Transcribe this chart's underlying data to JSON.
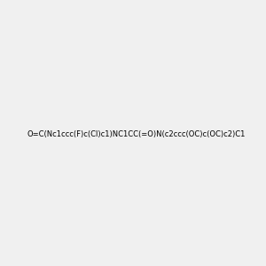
{
  "smiles": "O=C(Nc1ccc(F)c(Cl)c1)NC1CC(=O)N(c2ccc(OC)c(OC)c2)C1",
  "img_size": [
    300,
    300
  ],
  "background_color": "#f0f0f0",
  "atom_colors": {
    "N": [
      0,
      0,
      1
    ],
    "O": [
      1,
      0,
      0
    ],
    "F": [
      0.5,
      0,
      0.5
    ],
    "Cl": [
      0,
      0.7,
      0
    ]
  }
}
